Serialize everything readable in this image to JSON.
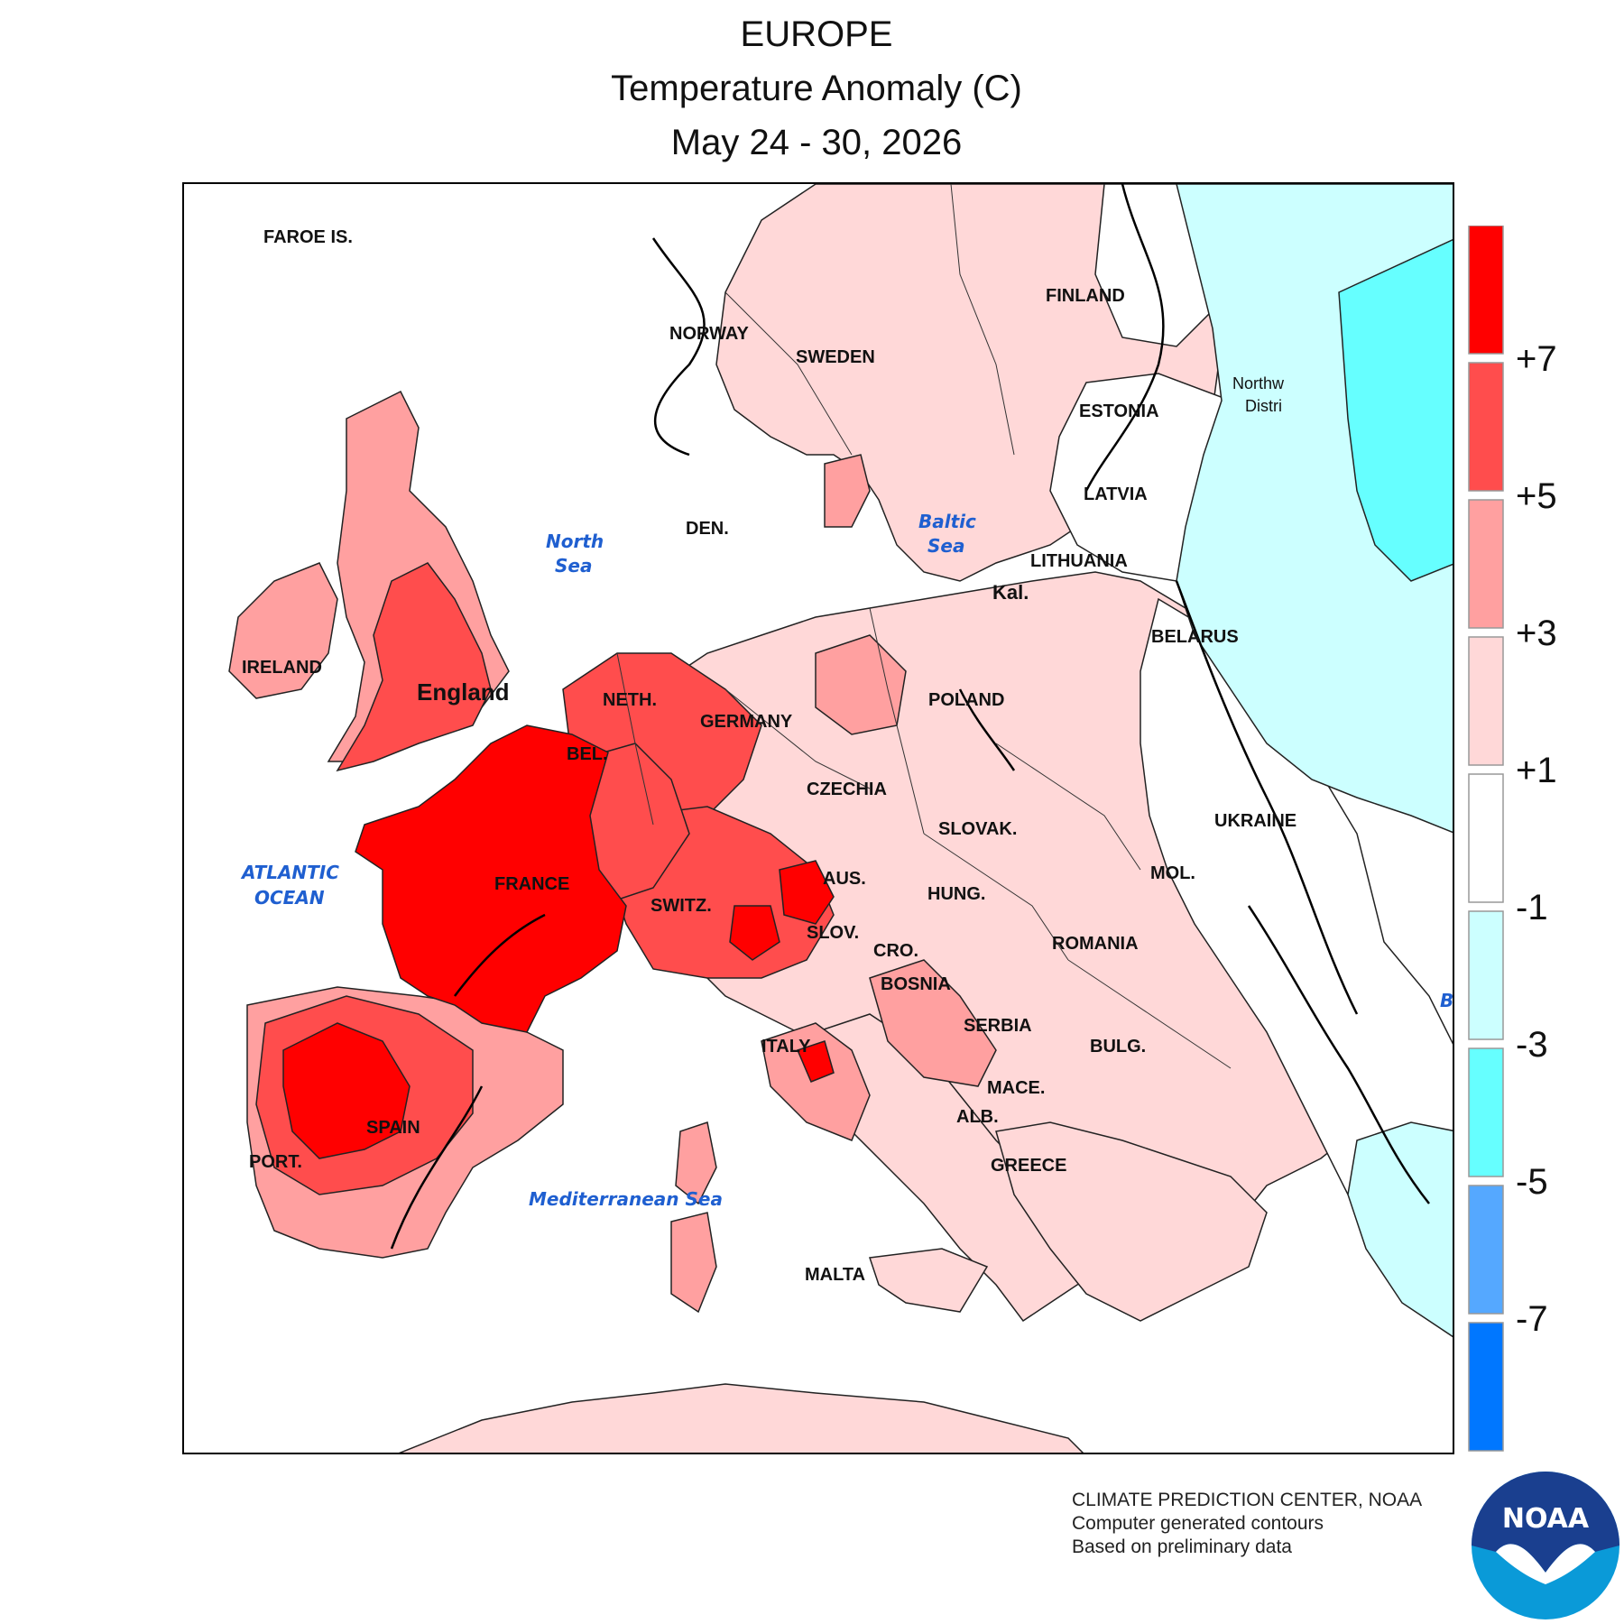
{
  "header": {
    "region": "EUROPE",
    "variable": "Temperature Anomaly (C)",
    "period": "May 24 - 30, 2026"
  },
  "legend": {
    "colors": [
      "#ff0000",
      "#ff4d4d",
      "#ffa0a0",
      "#ffd8d8",
      "#ffffff",
      "#ccffff",
      "#66ffff",
      "#55a8ff",
      "#0077ff"
    ],
    "labels": [
      "+7",
      "+5",
      "+3",
      "+1",
      "-1",
      "-3",
      "-5",
      "-7"
    ]
  },
  "map_labels": {
    "faroe": "FAROE IS.",
    "norway": "NORWAY",
    "sweden": "SWEDEN",
    "finland": "FINLAND",
    "estonia": "ESTONIA",
    "latvia": "LATVIA",
    "lithuania": "LITHUANIA",
    "kaliningrad": "Kal.",
    "belarus": "BELARUS",
    "northwest_district": "Northw",
    "northwest_district_2": "Distri",
    "ireland": "IRELAND",
    "england": "England",
    "denmark": "DEN.",
    "netherlands": "NETH.",
    "belgium": "BEL.",
    "germany": "GERMANY",
    "poland": "POLAND",
    "czechia": "CZECHIA",
    "slovakia": "SLOVAK.",
    "ukraine": "UKRAINE",
    "moldova": "MOL.",
    "france": "FRANCE",
    "switzerland": "SWITZ.",
    "austria": "AUS.",
    "hungary": "HUNG.",
    "slovenia": "SLOV.",
    "croatia": "CRO.",
    "bosnia": "BOSNIA",
    "romania": "ROMANIA",
    "serbia": "SERBIA",
    "bulgaria": "BULG.",
    "macedonia": "MACE.",
    "albania": "ALB.",
    "greece": "GREECE",
    "italy": "ITALY",
    "spain": "SPAIN",
    "portugal": "PORT.",
    "malta": "MALTA"
  },
  "sea_labels": {
    "north_sea_1": "North",
    "north_sea_2": "Sea",
    "baltic_1": "Baltic",
    "baltic_2": "Sea",
    "atlantic_1": "ATLANTIC",
    "atlantic_2": "OCEAN",
    "mediterranean": "Mediterranean Sea",
    "black_sea_partial": "B"
  },
  "credits": {
    "line1": "CLIMATE PREDICTION CENTER, NOAA",
    "line2": "Computer generated contours",
    "line3": "Based on preliminary data",
    "logo_text": "NOAA"
  }
}
